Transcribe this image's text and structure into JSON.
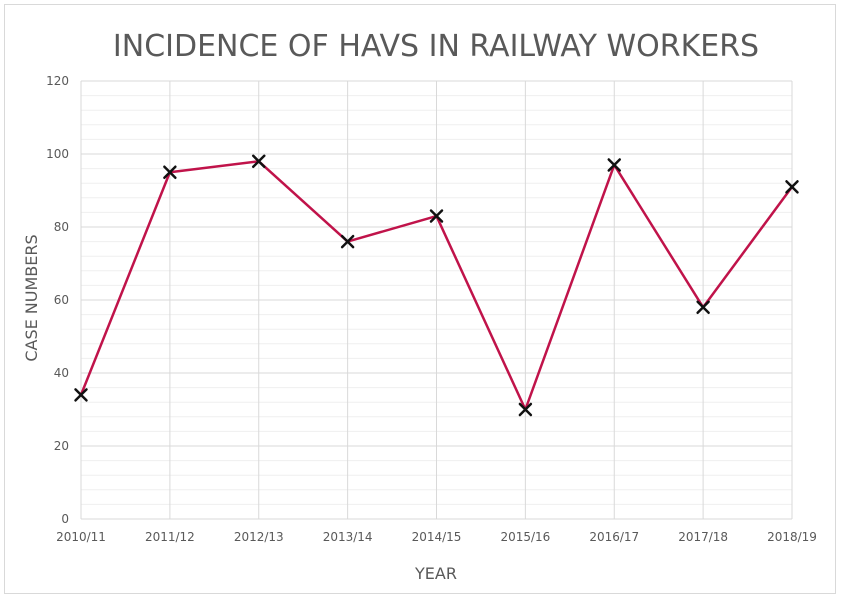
{
  "chart_data": {
    "type": "line",
    "title": "INCIDENCE OF HAVS IN RAILWAY WORKERS",
    "xlabel": "YEAR",
    "ylabel": "CASE NUMBERS",
    "categories": [
      "2010/11",
      "2011/12",
      "2012/13",
      "2013/14",
      "2014/15",
      "2015/16",
      "2016/17",
      "2017/18",
      "2018/19"
    ],
    "series": [
      {
        "values": [
          34,
          95,
          98,
          76,
          83,
          30,
          97,
          58,
          91
        ]
      }
    ],
    "ylim": [
      0,
      120
    ],
    "yticks": [
      0,
      20,
      40,
      60,
      80,
      100,
      120
    ],
    "grid": true,
    "marker": "x",
    "colors": {
      "line": "#c0134a",
      "marker": "#111111",
      "grid_major": "#d9d9d9",
      "grid_minor": "#efefef"
    }
  }
}
